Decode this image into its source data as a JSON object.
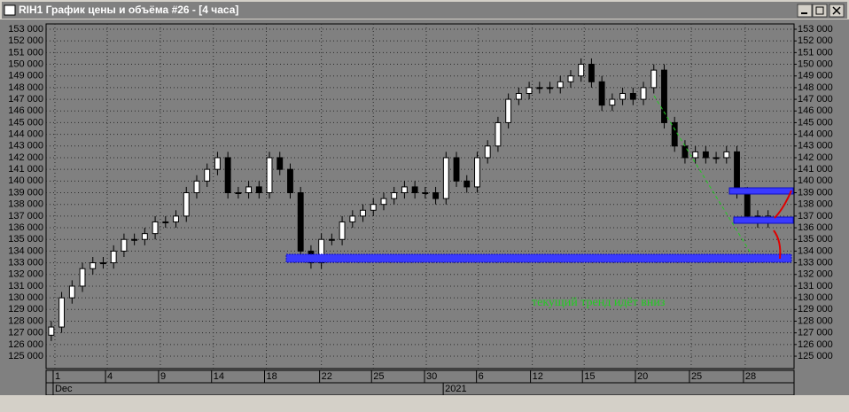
{
  "window_title": "RIH1 График цены и объёма #26 - [4 часа]",
  "chart_data": {
    "type": "candlestick",
    "annotation": "текущий тренд идёт вниз",
    "ylim": [
      123940,
      153455
    ],
    "yticks": [
      {
        "value": 125000,
        "label": "125 000"
      },
      {
        "value": 126000,
        "label": "126 000"
      },
      {
        "value": 127000,
        "label": "127 000"
      },
      {
        "value": 128000,
        "label": "128 000"
      },
      {
        "value": 129000,
        "label": "129 000"
      },
      {
        "value": 130000,
        "label": "130 000"
      },
      {
        "value": 131000,
        "label": "131 000"
      },
      {
        "value": 132000,
        "label": "132 000"
      },
      {
        "value": 133000,
        "label": "133 000"
      },
      {
        "value": 134000,
        "label": "134 000"
      },
      {
        "value": 135000,
        "label": "135 000"
      },
      {
        "value": 136000,
        "label": "136 000"
      },
      {
        "value": 137000,
        "label": "137 000"
      },
      {
        "value": 138000,
        "label": "138 000"
      },
      {
        "value": 139000,
        "label": "139 000"
      },
      {
        "value": 140000,
        "label": "140 000"
      },
      {
        "value": 141000,
        "label": "141 000"
      },
      {
        "value": 142000,
        "label": "142 000"
      },
      {
        "value": 143000,
        "label": "143 000"
      },
      {
        "value": 144000,
        "label": "144 000"
      },
      {
        "value": 145000,
        "label": "145 000"
      },
      {
        "value": 146000,
        "label": "146 000"
      },
      {
        "value": 147000,
        "label": "147 000"
      },
      {
        "value": 148000,
        "label": "148 000"
      },
      {
        "value": 149000,
        "label": "149 000"
      },
      {
        "value": 150000,
        "label": "150 000"
      },
      {
        "value": 151000,
        "label": "151 000"
      },
      {
        "value": 152000,
        "label": "152 000"
      },
      {
        "value": 153000,
        "label": "153 000"
      }
    ],
    "xlim": [
      0,
      72
    ],
    "xticks": [
      {
        "value": 0.85,
        "label": "1"
      },
      {
        "value": 5.89,
        "label": "4"
      },
      {
        "value": 11.0,
        "label": "9"
      },
      {
        "value": 16.1,
        "label": "14"
      },
      {
        "value": 21.2,
        "label": "18"
      },
      {
        "value": 26.5,
        "label": "22"
      },
      {
        "value": 31.5,
        "label": "25"
      },
      {
        "value": 36.6,
        "label": "30"
      },
      {
        "value": 41.6,
        "label": "6"
      },
      {
        "value": 46.8,
        "label": "12"
      },
      {
        "value": 51.8,
        "label": "15"
      },
      {
        "value": 56.9,
        "label": "20"
      },
      {
        "value": 62.1,
        "label": "25"
      },
      {
        "value": 67.3,
        "label": "28"
      }
    ],
    "xticks2": [
      {
        "value": 0.85,
        "label": "Dec"
      },
      {
        "value": 38.4,
        "label": "2021"
      }
    ],
    "grid": true,
    "up_color": "#ffffff",
    "down_color": "#000000",
    "wick_color": "#000000",
    "candles": [
      [
        126800,
        128000,
        126300,
        127500
      ],
      [
        127500,
        130500,
        127000,
        130000
      ],
      [
        130000,
        131500,
        129500,
        131000
      ],
      [
        131000,
        133000,
        130500,
        132500
      ],
      [
        132500,
        133500,
        132000,
        133000
      ],
      [
        133000,
        133500,
        132500,
        133000
      ],
      [
        133000,
        134500,
        132500,
        134000
      ],
      [
        134000,
        135500,
        133500,
        135000
      ],
      [
        135000,
        135500,
        134500,
        135000
      ],
      [
        135000,
        136000,
        134500,
        135500
      ],
      [
        135500,
        137000,
        135000,
        136500
      ],
      [
        136500,
        137000,
        136000,
        136500
      ],
      [
        136500,
        137500,
        136000,
        137000
      ],
      [
        137000,
        139500,
        136500,
        139000
      ],
      [
        139000,
        140500,
        138500,
        140000
      ],
      [
        140000,
        141500,
        139500,
        141000
      ],
      [
        141000,
        142500,
        140500,
        142000
      ],
      [
        142000,
        142500,
        138500,
        139000
      ],
      [
        139000,
        139500,
        138500,
        139000
      ],
      [
        139000,
        140000,
        138500,
        139500
      ],
      [
        139500,
        140000,
        138500,
        139000
      ],
      [
        139000,
        142500,
        138500,
        142000
      ],
      [
        142000,
        142500,
        140500,
        141000
      ],
      [
        141000,
        141500,
        138500,
        139000
      ],
      [
        139000,
        139500,
        133500,
        134000
      ],
      [
        134000,
        134500,
        132500,
        133000
      ],
      [
        133000,
        135500,
        132500,
        135000
      ],
      [
        135000,
        135500,
        134500,
        135000
      ],
      [
        135000,
        137000,
        134500,
        136500
      ],
      [
        136500,
        137500,
        136000,
        137000
      ],
      [
        137000,
        138000,
        136500,
        137500
      ],
      [
        137500,
        138500,
        137000,
        138000
      ],
      [
        138000,
        139000,
        137500,
        138500
      ],
      [
        138500,
        139500,
        138000,
        139000
      ],
      [
        139000,
        140000,
        138500,
        139500
      ],
      [
        139500,
        140000,
        138500,
        139000
      ],
      [
        139000,
        139500,
        138500,
        139000
      ],
      [
        139000,
        139500,
        138000,
        138500
      ],
      [
        138500,
        142500,
        138000,
        142000
      ],
      [
        142000,
        142500,
        139500,
        140000
      ],
      [
        140000,
        140500,
        139000,
        139500
      ],
      [
        139500,
        142500,
        139000,
        142000
      ],
      [
        142000,
        143500,
        141500,
        143000
      ],
      [
        143000,
        145500,
        142500,
        145000
      ],
      [
        145000,
        147500,
        144500,
        147000
      ],
      [
        147000,
        148000,
        146500,
        147500
      ],
      [
        147500,
        148500,
        147000,
        148000
      ],
      [
        148000,
        148500,
        147500,
        148000
      ],
      [
        148000,
        148500,
        147500,
        148000
      ],
      [
        148000,
        149000,
        147500,
        148500
      ],
      [
        148500,
        149500,
        148000,
        149000
      ],
      [
        149000,
        150500,
        148500,
        150000
      ],
      [
        150000,
        150500,
        148000,
        148500
      ],
      [
        148500,
        149000,
        146000,
        146500
      ],
      [
        146500,
        147500,
        146000,
        147000
      ],
      [
        147000,
        148000,
        146500,
        147500
      ],
      [
        147500,
        148000,
        146500,
        147000
      ],
      [
        147000,
        148500,
        146500,
        148000
      ],
      [
        148000,
        150000,
        147500,
        149500
      ],
      [
        149500,
        150000,
        144500,
        145000
      ],
      [
        145000,
        145500,
        142500,
        143000
      ],
      [
        143000,
        143500,
        141500,
        142000
      ],
      [
        142000,
        143000,
        141500,
        142500
      ],
      [
        142500,
        143000,
        141500,
        142000
      ],
      [
        142000,
        142500,
        141500,
        142000
      ],
      [
        142000,
        143000,
        141500,
        142500
      ],
      [
        142500,
        143000,
        138500,
        139000
      ],
      [
        139000,
        139500,
        136500,
        137000
      ],
      [
        137000,
        137500,
        136000,
        136500
      ],
      [
        136500,
        137500,
        136000,
        137000
      ]
    ]
  }
}
